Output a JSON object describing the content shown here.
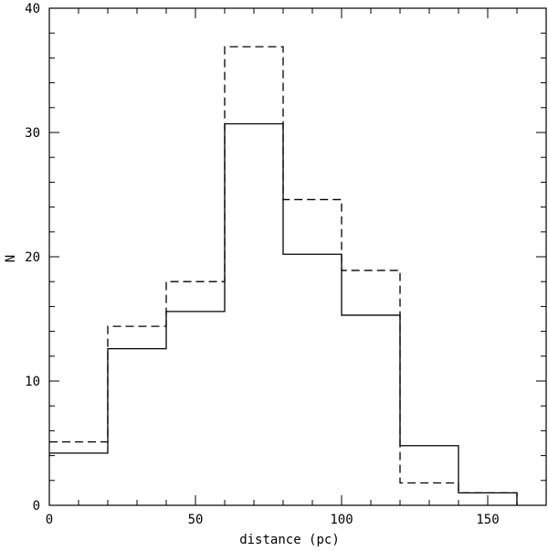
{
  "chart_data": {
    "type": "histogram",
    "xlabel": "distance (pc)",
    "ylabel": "N",
    "xlim": [
      0,
      170
    ],
    "ylim": [
      0,
      40
    ],
    "grid": false,
    "x_ticks": [
      0,
      50,
      100,
      150
    ],
    "y_ticks": [
      0,
      10,
      20,
      30,
      40
    ],
    "x_tick_labels": [
      "0",
      "50",
      "100",
      "150"
    ],
    "y_tick_labels": [
      "0",
      "10",
      "20",
      "30",
      "40"
    ],
    "bin_edges": [
      0,
      20,
      40,
      60,
      80,
      100,
      120,
      140,
      160
    ],
    "series": [
      {
        "style": "solid",
        "values": [
          4.2,
          12.6,
          15.6,
          30.7,
          20.2,
          15.3,
          4.8,
          1.0
        ]
      },
      {
        "style": "dashed",
        "values": [
          5.1,
          14.4,
          18.0,
          36.9,
          24.6,
          18.9,
          1.8,
          1.0
        ]
      }
    ]
  }
}
